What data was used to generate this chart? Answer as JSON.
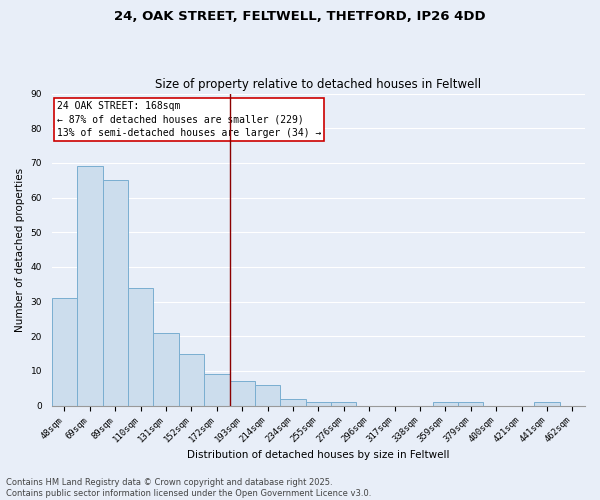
{
  "title_line1": "24, OAK STREET, FELTWELL, THETFORD, IP26 4DD",
  "title_line2": "Size of property relative to detached houses in Feltwell",
  "xlabel": "Distribution of detached houses by size in Feltwell",
  "ylabel": "Number of detached properties",
  "bar_color": "#ccdded",
  "bar_edge_color": "#7aaed0",
  "background_color": "#e8eef8",
  "grid_color": "#ffffff",
  "categories": [
    "48sqm",
    "69sqm",
    "89sqm",
    "110sqm",
    "131sqm",
    "152sqm",
    "172sqm",
    "193sqm",
    "214sqm",
    "234sqm",
    "255sqm",
    "276sqm",
    "296sqm",
    "317sqm",
    "338sqm",
    "359sqm",
    "379sqm",
    "400sqm",
    "421sqm",
    "441sqm",
    "462sqm"
  ],
  "values": [
    31,
    69,
    65,
    34,
    21,
    15,
    9,
    7,
    6,
    2,
    1,
    1,
    0,
    0,
    0,
    1,
    1,
    0,
    0,
    1,
    0
  ],
  "vline_x": 6.5,
  "vline_color": "#8b0000",
  "annotation_text": "24 OAK STREET: 168sqm\n← 87% of detached houses are smaller (229)\n13% of semi-detached houses are larger (34) →",
  "annotation_box_color": "#ffffff",
  "annotation_box_edge_color": "#cc0000",
  "ylim": [
    0,
    90
  ],
  "yticks": [
    0,
    10,
    20,
    30,
    40,
    50,
    60,
    70,
    80,
    90
  ],
  "footer_line1": "Contains HM Land Registry data © Crown copyright and database right 2025.",
  "footer_line2": "Contains public sector information licensed under the Open Government Licence v3.0.",
  "title_fontsize": 9.5,
  "subtitle_fontsize": 8.5,
  "axis_label_fontsize": 7.5,
  "tick_fontsize": 6.5,
  "annotation_fontsize": 7,
  "footer_fontsize": 6
}
